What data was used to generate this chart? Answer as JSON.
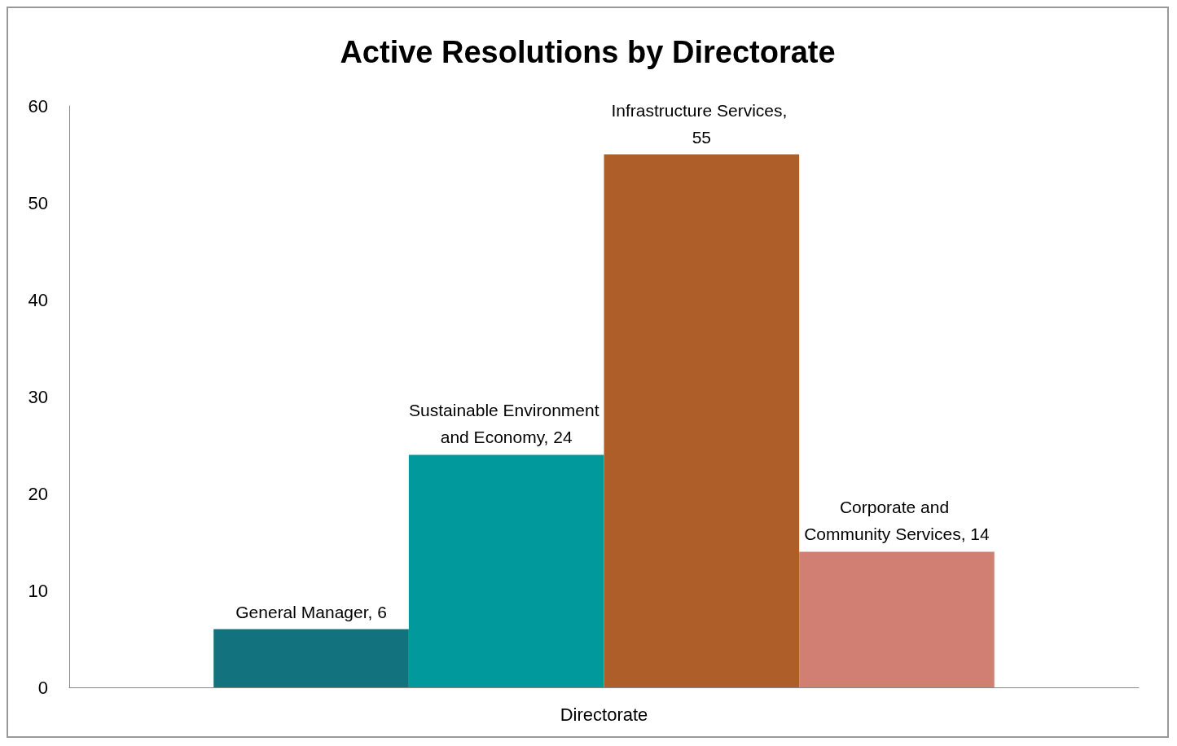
{
  "chart_data": {
    "type": "bar",
    "title": "Active Resolutions by Directorate",
    "categories": [
      "Directorate"
    ],
    "series": [
      {
        "color": "#12737f",
        "values": [
          6
        ],
        "value_labels": [
          "General Manager, 6"
        ]
      },
      {
        "color": "#01999b",
        "values": [
          24
        ],
        "value_labels": [
          "Sustainable Environment and Economy, 24"
        ]
      },
      {
        "color": "#ae5e29",
        "values": [
          55
        ],
        "value_labels": [
          "Infrastructure Services, 55"
        ]
      },
      {
        "color": "#d07f72",
        "values": [
          14
        ],
        "value_labels": [
          "Corporate and Community Services, 14"
        ]
      }
    ],
    "ylim": [
      0,
      60
    ],
    "yticks": [
      0,
      10,
      20,
      30,
      40,
      50,
      60
    ],
    "grid": false
  }
}
